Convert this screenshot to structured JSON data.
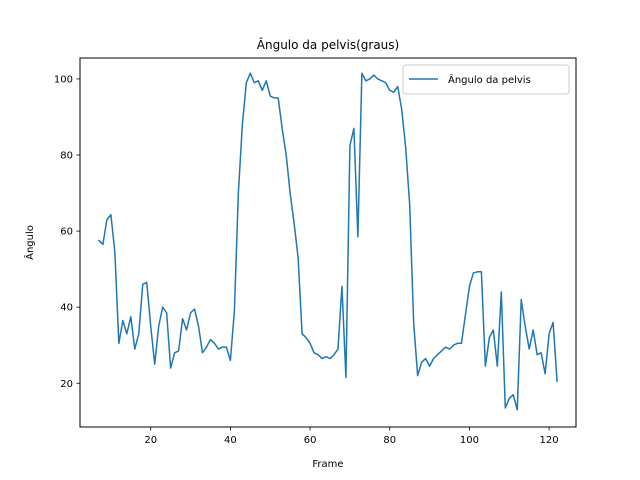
{
  "chart_data": {
    "type": "line",
    "title": "Ângulo da pelvis(graus)",
    "xlabel": "Frame",
    "ylabel": "Ângulo",
    "xlim": [
      2.25,
      126.75
    ],
    "ylim": [
      8.5,
      105.5
    ],
    "xticks": [
      20,
      40,
      60,
      80,
      100,
      120
    ],
    "yticks": [
      20,
      40,
      60,
      80,
      100
    ],
    "grid": false,
    "legend_position": "top-right",
    "colors": {
      "series": "#1f77b4"
    },
    "series": [
      {
        "name": "Ângulo da pelvis",
        "x": [
          7,
          8,
          9,
          10,
          11,
          12,
          13,
          14,
          15,
          16,
          17,
          18,
          19,
          20,
          21,
          22,
          23,
          24,
          25,
          26,
          27,
          28,
          29,
          30,
          31,
          32,
          33,
          34,
          35,
          36,
          37,
          38,
          39,
          40,
          41,
          42,
          43,
          44,
          45,
          46,
          47,
          48,
          49,
          50,
          51,
          52,
          53,
          54,
          55,
          56,
          57,
          58,
          59,
          60,
          61,
          62,
          63,
          64,
          65,
          66,
          67,
          68,
          69,
          70,
          71,
          72,
          73,
          74,
          75,
          76,
          77,
          78,
          79,
          80,
          81,
          82,
          83,
          84,
          85,
          86,
          87,
          88,
          89,
          90,
          91,
          92,
          93,
          94,
          95,
          96,
          97,
          98,
          99,
          100,
          101,
          102,
          103,
          104,
          105,
          106,
          107,
          108,
          109,
          110,
          111,
          112,
          113,
          114,
          115,
          116,
          117,
          118,
          119,
          120,
          121,
          122
        ],
        "values": [
          57.5,
          56.5,
          63,
          64.3,
          54.5,
          30.5,
          36.5,
          33,
          37.5,
          29,
          33,
          46,
          46.5,
          35,
          25,
          35,
          40,
          38.5,
          24,
          28,
          28.5,
          37,
          34,
          38.5,
          39.5,
          35,
          28,
          29.5,
          31.5,
          30.5,
          29,
          29.5,
          29.5,
          26,
          39,
          70,
          88,
          99,
          101.5,
          99,
          99.5,
          97,
          99.5,
          95.5,
          95,
          95,
          87,
          80,
          70,
          62,
          53,
          33,
          32,
          30.5,
          28,
          27.5,
          26.5,
          27,
          26.5,
          27.5,
          29,
          45.5,
          21.5,
          82.5,
          87,
          58.5,
          101.5,
          99.5,
          100,
          101,
          100,
          99.5,
          99,
          97,
          96.5,
          98,
          92,
          82,
          67,
          36,
          22,
          25.5,
          26.5,
          24.5,
          26.5,
          27.5,
          28.5,
          29.5,
          29,
          30,
          30.5,
          30.5,
          38,
          45.5,
          49,
          49.3,
          49.3,
          24.5,
          32,
          34,
          24.5,
          44,
          13.5,
          16,
          17,
          13,
          42,
          35,
          29,
          34,
          27.5,
          28,
          22.5,
          33,
          36,
          20.5
        ]
      }
    ]
  }
}
